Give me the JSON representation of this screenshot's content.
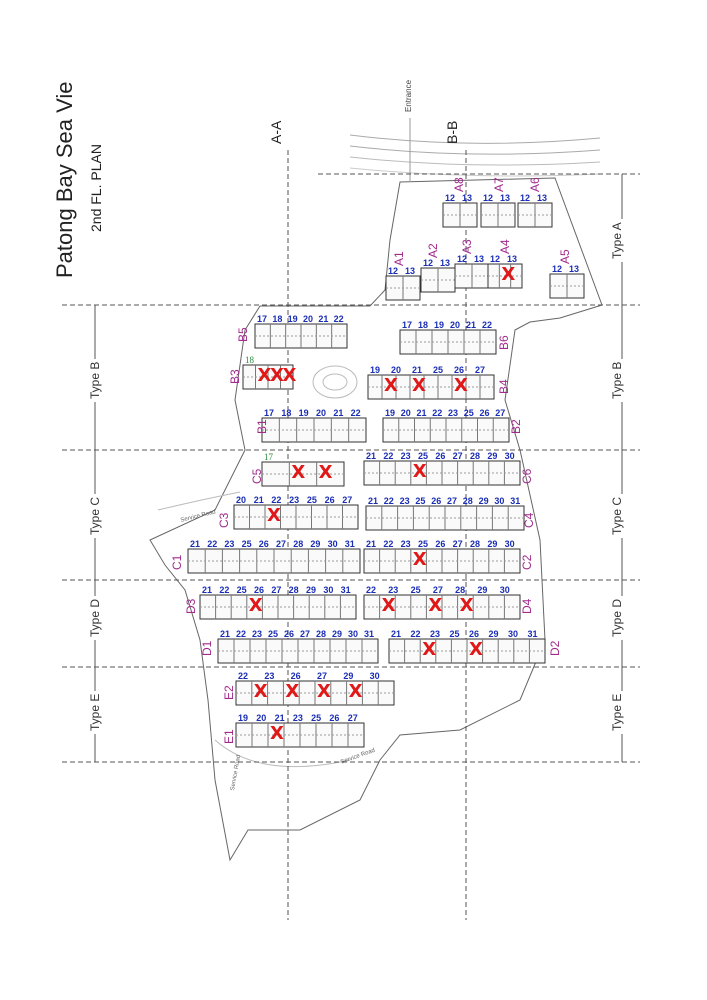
{
  "title": "Patong Bay Sea Vie",
  "subtitle": "2nd FL. PLAN",
  "sections": {
    "aa": "A-A",
    "bb": "B-B"
  },
  "entrance": "Entrance",
  "service_road": "Service Road",
  "types": {
    "a": "Type A",
    "b": "Type B",
    "c": "Type C",
    "d": "Type D",
    "e": "Type E"
  },
  "colors": {
    "building_label": "#a12a8c",
    "unit_number": "#1a2db5",
    "sold_mark": "#e01818",
    "line": "#555555"
  },
  "buildings": [
    {
      "id": "A8",
      "units": [
        "12",
        "13"
      ],
      "sold": []
    },
    {
      "id": "A7",
      "units": [
        "12",
        "13"
      ],
      "sold": []
    },
    {
      "id": "A6",
      "units": [
        "12",
        "13"
      ],
      "sold": []
    },
    {
      "id": "A1",
      "units": [
        "12",
        "13"
      ],
      "sold": []
    },
    {
      "id": "A2",
      "units": [
        "12",
        "13"
      ],
      "sold": []
    },
    {
      "id": "A3",
      "units": [
        "12",
        "13"
      ],
      "sold": []
    },
    {
      "id": "A4",
      "units": [
        "12",
        "13"
      ],
      "sold": [
        "13"
      ]
    },
    {
      "id": "A5",
      "units": [
        "12",
        "13"
      ],
      "sold": []
    },
    {
      "id": "B5",
      "units": [
        "17",
        "18",
        "19",
        "20",
        "21",
        "22"
      ],
      "sold": []
    },
    {
      "id": "B6",
      "units": [
        "17",
        "18",
        "19",
        "20",
        "21",
        "22"
      ],
      "sold": []
    },
    {
      "id": "B3",
      "units": [
        "18"
      ],
      "sold": [
        "19",
        "20",
        "21"
      ]
    },
    {
      "id": "B4",
      "units": [
        "19",
        "20",
        "21",
        "25",
        "26",
        "27"
      ],
      "sold": [
        "22",
        "23",
        "25"
      ]
    },
    {
      "id": "B1",
      "units": [
        "17",
        "18",
        "19",
        "20",
        "21",
        "22"
      ],
      "sold": []
    },
    {
      "id": "B2",
      "units": [
        "19",
        "20",
        "21",
        "22",
        "23",
        "25",
        "26",
        "27"
      ],
      "sold": []
    },
    {
      "id": "C5",
      "units": [
        "17"
      ],
      "sold": [
        "20",
        "27"
      ]
    },
    {
      "id": "C6",
      "units": [
        "21",
        "22",
        "23",
        "25",
        "26",
        "27",
        "28",
        "29",
        "30"
      ],
      "sold": [
        "31"
      ]
    },
    {
      "id": "C3",
      "units": [
        "20",
        "21",
        "22",
        "23",
        "25",
        "26",
        "27"
      ],
      "sold": [
        "19"
      ]
    },
    {
      "id": "C4",
      "units": [
        "21",
        "22",
        "23",
        "25",
        "26",
        "27",
        "28",
        "29",
        "30",
        "31"
      ],
      "sold": []
    },
    {
      "id": "C1",
      "units": [
        "21",
        "22",
        "23",
        "25",
        "26",
        "27",
        "28",
        "29",
        "30",
        "31"
      ],
      "sold": []
    },
    {
      "id": "C2",
      "units": [
        "21",
        "22",
        "23",
        "25",
        "26",
        "27",
        "28",
        "29",
        "30"
      ],
      "sold": [
        "31"
      ]
    },
    {
      "id": "D3",
      "units": [
        "21",
        "22",
        "25",
        "26",
        "27",
        "28",
        "29",
        "30",
        "31"
      ],
      "sold": [
        "23"
      ]
    },
    {
      "id": "D4",
      "units": [
        "22",
        "23",
        "25",
        "27",
        "28",
        "29",
        "30"
      ],
      "sold": [
        "21",
        "26",
        "31"
      ]
    },
    {
      "id": "D1",
      "units": [
        "21",
        "22",
        "23",
        "25",
        "26",
        "27",
        "28",
        "29",
        "30",
        "31"
      ],
      "sold": []
    },
    {
      "id": "D2",
      "units": [
        "21",
        "22",
        "23",
        "25",
        "26",
        "29",
        "30",
        "31"
      ],
      "sold": [
        "27",
        "28"
      ]
    },
    {
      "id": "E2",
      "units": [
        "22",
        "23",
        "26",
        "27",
        "29",
        "30"
      ],
      "sold": [
        "21",
        "23",
        "28",
        "30"
      ]
    },
    {
      "id": "E1",
      "units": [
        "19",
        "20",
        "21",
        "23",
        "25",
        "26",
        "27"
      ],
      "sold": [
        "22"
      ]
    }
  ]
}
